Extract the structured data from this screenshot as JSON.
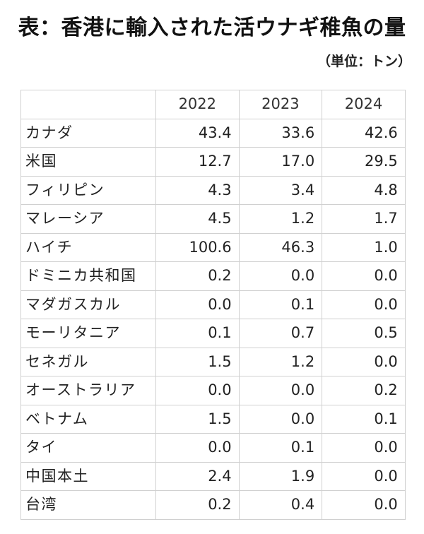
{
  "title": "表：香港に輸入された活ウナギ稚魚の量",
  "unit": "（単位：トン）",
  "table": {
    "years": [
      "2022",
      "2023",
      "2024"
    ],
    "rows": [
      {
        "name": "カナダ",
        "values": [
          "43.4",
          "33.6",
          "42.6"
        ]
      },
      {
        "name": "米国",
        "values": [
          "12.7",
          "17.0",
          "29.5"
        ]
      },
      {
        "name": "フィリピン",
        "values": [
          "4.3",
          "3.4",
          "4.8"
        ]
      },
      {
        "name": "マレーシア",
        "values": [
          "4.5",
          "1.2",
          "1.7"
        ]
      },
      {
        "name": "ハイチ",
        "values": [
          "100.6",
          "46.3",
          "1.0"
        ]
      },
      {
        "name": "ドミニカ共和国",
        "values": [
          "0.2",
          "0.0",
          "0.0"
        ]
      },
      {
        "name": "マダガスカル",
        "values": [
          "0.0",
          "0.1",
          "0.0"
        ]
      },
      {
        "name": "モーリタニア",
        "values": [
          "0.1",
          "0.7",
          "0.5"
        ]
      },
      {
        "name": "セネガル",
        "values": [
          "1.5",
          "1.2",
          "0.0"
        ]
      },
      {
        "name": "オーストラリア",
        "values": [
          "0.0",
          "0.0",
          "0.2"
        ]
      },
      {
        "name": "ベトナム",
        "values": [
          "1.5",
          "0.0",
          "0.1"
        ]
      },
      {
        "name": "タイ",
        "values": [
          "0.0",
          "0.1",
          "0.0"
        ]
      },
      {
        "name": "中国本土",
        "values": [
          "2.4",
          "1.9",
          "0.0"
        ]
      },
      {
        "name": "台湾",
        "values": [
          "0.2",
          "0.4",
          "0.0"
        ]
      }
    ]
  }
}
